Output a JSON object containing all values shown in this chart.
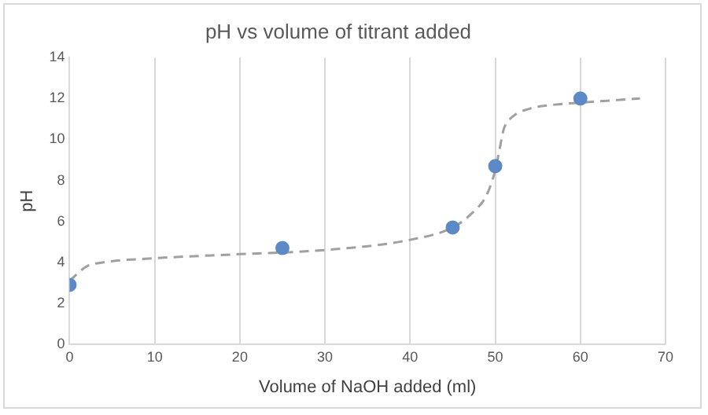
{
  "chart_data": {
    "type": "scatter",
    "title": "pH vs volume of titrant added",
    "xlabel": "Volume of NaOH added (ml)",
    "ylabel": "pH",
    "series": [
      {
        "color": "#5b8ac6",
        "x": [
          0,
          25,
          45,
          50,
          60
        ],
        "values": [
          2.9,
          4.7,
          5.7,
          8.7,
          12.0
        ],
        "marker": "circle"
      },
      {
        "type": "line",
        "color": "#a0a0a0",
        "line_style": "dashed",
        "marker": "none",
        "x": [
          0,
          2,
          4,
          10,
          20,
          30,
          40,
          45,
          47,
          49,
          50,
          50.5,
          51,
          52,
          54,
          57,
          60,
          67
        ],
        "values": [
          3.1,
          3.8,
          4.0,
          4.2,
          4.4,
          4.6,
          5.1,
          5.7,
          6.3,
          7.3,
          8.5,
          9.5,
          10.5,
          11.1,
          11.5,
          11.7,
          11.8,
          12.0
        ]
      }
    ],
    "xlim": [
      0,
      70
    ],
    "xticks": [
      0,
      10,
      20,
      30,
      40,
      50,
      60,
      70
    ],
    "ylim": [
      0,
      14
    ],
    "yticks": [
      0,
      2,
      4,
      6,
      8,
      10,
      12,
      14
    ],
    "grid": "x",
    "legend": false
  }
}
